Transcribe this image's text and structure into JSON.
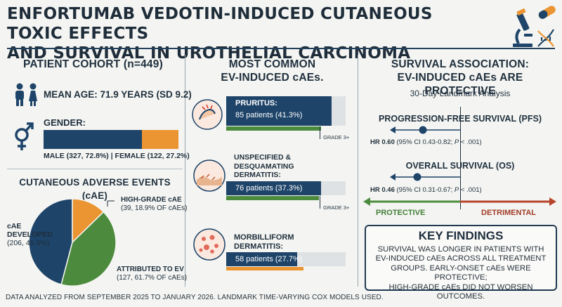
{
  "title": {
    "line1": "ENFORTUMAB VEDOTIN-INDUCED CUTANEOUS TOXIC EFFECTS",
    "line2": "AND SURVIVAL IN UROTHELIAL CARCINOMA"
  },
  "cohort": {
    "title": "PATIENT COHORT (n=449)",
    "mean_age": "MEAN AGE: 71.9 YEARS (SD 9.2)",
    "gender_label": "GENDER:",
    "gender_caption": "MALE (327, 72.8%) | FEMALE (122, 27.2%)",
    "male_fraction": 0.728
  },
  "cae": {
    "title": "CUTANEOUS ADVERSE EVENTS (cAE)",
    "developed_line1": "cAE",
    "developed_line2": "DEVELOPED",
    "developed_line3": "(206, 45.9%)",
    "highgrade_line1": "HIGH-GRADE cAE",
    "highgrade_line2": "(39, 18.9% OF cAEs)",
    "attributed_line1": "ATTRIBUTED TO EV",
    "attributed_line2": "(127, 61.7% OF cAEs)",
    "pie": {
      "developed": 45.9,
      "highgrade_share": 18.9,
      "attributed_share": 61.7
    }
  },
  "common": {
    "title_line1": "MOST COMMON",
    "title_line2": "EV-INDUCED cAEs.",
    "grade_label": "GRADE 3+",
    "items": [
      {
        "name1": "PRURITUS:",
        "name2": "",
        "name3": "",
        "value": "85 patients (41.3%)",
        "fraction": 0.413
      },
      {
        "name1": "UNSPECIFIED &",
        "name2": "DESQUAMATING",
        "name3": "DERMATITIS:",
        "value": "76 patients (37.3%)",
        "fraction": 0.373
      },
      {
        "name1": "MORBILLIFORM",
        "name2": "DERMATITIS:",
        "name3": "",
        "value": "58 patients (27.7%)",
        "fraction": 0.277
      }
    ]
  },
  "survival": {
    "title_line1": "SURVIVAL ASSOCIATION:",
    "title_line2": "EV-INDUCED cAEs ARE PROTECTIVE",
    "subtitle": "30-Day Landmark Analysis",
    "pfs_label": "PROGRESSION-FREE SURVIVAL (PFS)",
    "pfs_hr": "HR 0.60",
    "pfs_ci": "(95% CI 0.43-0.82; ",
    "pfs_p": "P",
    "pfs_p_value": " < .001)",
    "os_label": "OVERALL SURVIVAL (OS)",
    "os_hr": "HR 0.46",
    "os_ci": "(95% CI 0.31-0.67; ",
    "os_p": "P",
    "os_p_value": " < .001)",
    "protective": "PROTECTIVE",
    "detrimental": "DETRIMENTAL"
  },
  "key": {
    "title": "KEY FINDINGS",
    "line1": "SURVIVAL WAS LONGER IN PATIENTS WITH",
    "line2": "EV-INDUCED cAEs ACROSS ALL TREATMENT",
    "line3": "GROUPS. EARLY-ONSET cAEs WERE PROTECTIVE;",
    "line4": "HIGH-GRADE cAEs DID NOT WORSEN OUTCOMES."
  },
  "footnote": "DATA ANALYZED FROM SEPTEMBER 2025 TO JANUARY 2026. LANDMARK TIME-VARYING COX MODELS USED.",
  "colors": {
    "navy": "#1e4469",
    "orange": "#eb9432",
    "green": "#4c8b3d",
    "gray": "#dfe2e4"
  }
}
